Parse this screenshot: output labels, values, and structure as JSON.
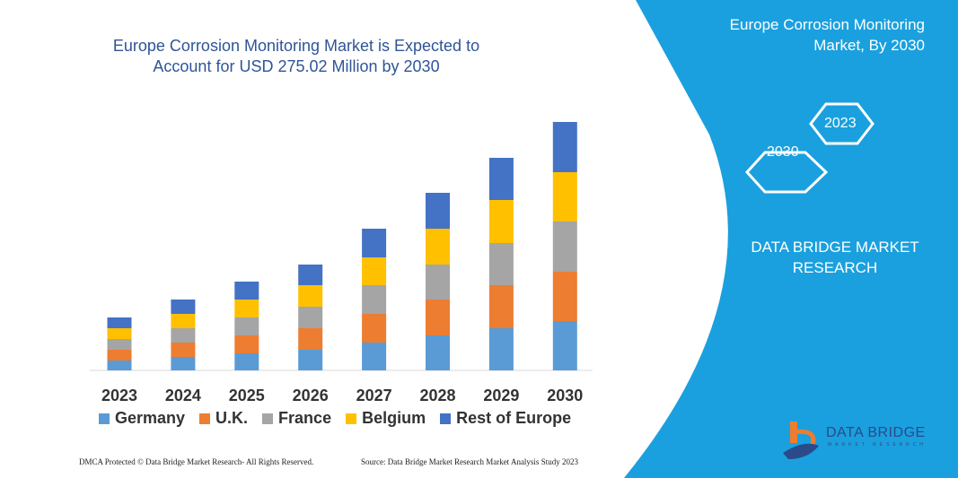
{
  "title": "Europe Corrosion Monitoring Market is Expected to Account for USD 275.02 Million by 2030",
  "side_panel": {
    "title": "Europe Corrosion Monitoring Market, By 2030",
    "hex_labels": [
      "2023",
      "2030"
    ],
    "brand": "DATA BRIDGE MARKET RESEARCH",
    "logo_text": "DATA BRIDGE",
    "logo_subtext": "MARKET RESEARCH",
    "panel_color": "#1aa0de"
  },
  "footer": {
    "left": "DMCA Protected © Data Bridge Market Research-  All Rights Reserved.",
    "right": "Source: Data Bridge Market Research  Market Analysis Study 2023"
  },
  "chart_data": {
    "type": "bar",
    "stacked": true,
    "title": "Europe Corrosion Monitoring Market is Expected to Account for USD 275.02 Million by 2030",
    "categories": [
      "2023",
      "2024",
      "2025",
      "2026",
      "2027",
      "2028",
      "2029",
      "2030"
    ],
    "series": [
      {
        "name": "Germany",
        "color": "#5b9bd5",
        "values": [
          11,
          15,
          19,
          23,
          31,
          39,
          47,
          55
        ]
      },
      {
        "name": "U.K.",
        "color": "#ed7d31",
        "values": [
          12,
          16,
          20,
          24,
          32,
          40,
          48,
          55
        ]
      },
      {
        "name": "France",
        "color": "#a5a5a5",
        "values": [
          12,
          16,
          20,
          24,
          32,
          39,
          47,
          56
        ]
      },
      {
        "name": "Belgium",
        "color": "#ffc000",
        "values": [
          12,
          16,
          20,
          24,
          31,
          40,
          48,
          55
        ]
      },
      {
        "name": "Rest of Europe",
        "color": "#4472c4",
        "values": [
          12,
          16,
          20,
          23,
          32,
          40,
          47,
          56
        ]
      }
    ],
    "ylim": [
      0,
      280
    ],
    "grid": false,
    "y_axis_shown": false,
    "legend": "bottom"
  }
}
